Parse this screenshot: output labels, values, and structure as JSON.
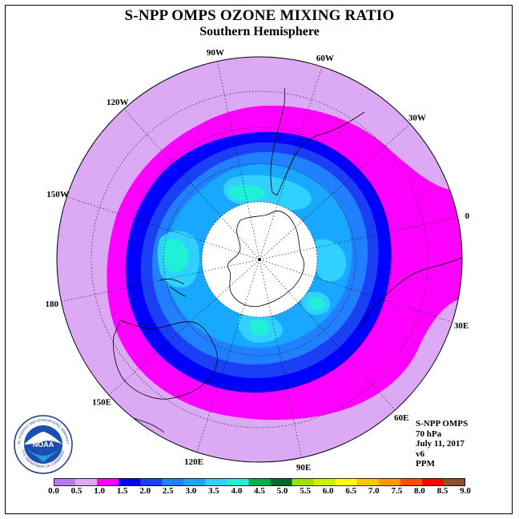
{
  "title": "S-NPP OMPS OZONE MIXING RATIO",
  "subtitle": "Southern Hemisphere",
  "longitude_labels": [
    "90W",
    "60W",
    "30W",
    "0",
    "30E",
    "60E",
    "90E",
    "120E",
    "150E",
    "180",
    "150W",
    "120W"
  ],
  "info": {
    "instrument": "S-NPP OMPS",
    "level": "70 hPa",
    "date": "July 11, 2017",
    "version": "v6",
    "units": "PPM"
  },
  "colorbar": {
    "labels": [
      "0.0",
      "0.5",
      "1.0",
      "1.5",
      "2.0",
      "2.5",
      "3.0",
      "3.5",
      "4.0",
      "4.5",
      "5.0",
      "5.5",
      "6.0",
      "6.5",
      "7.0",
      "7.5",
      "8.0",
      "8.5",
      "9.0"
    ],
    "colors": [
      "#b57cf0",
      "#dcaaf5",
      "#ff00ff",
      "#0000ff",
      "#1a3ff5",
      "#2080ff",
      "#18a8ff",
      "#30d0ff",
      "#20f0d8",
      "#00b050",
      "#006830",
      "#a0e000",
      "#d0f000",
      "#ffff00",
      "#f5c800",
      "#ff9a00",
      "#ff5000",
      "#ff0000",
      "#8a5030"
    ]
  },
  "logo": {
    "text": "NOAA",
    "ring_text": "NATIONAL OCEANIC AND ATMOSPHERIC ADMINISTRATION",
    "ring_text_bottom": "U.S. DEPARTMENT OF COMMERCE"
  },
  "colors": {
    "polar_night": "#ffffff",
    "land_outline": "#000000"
  }
}
